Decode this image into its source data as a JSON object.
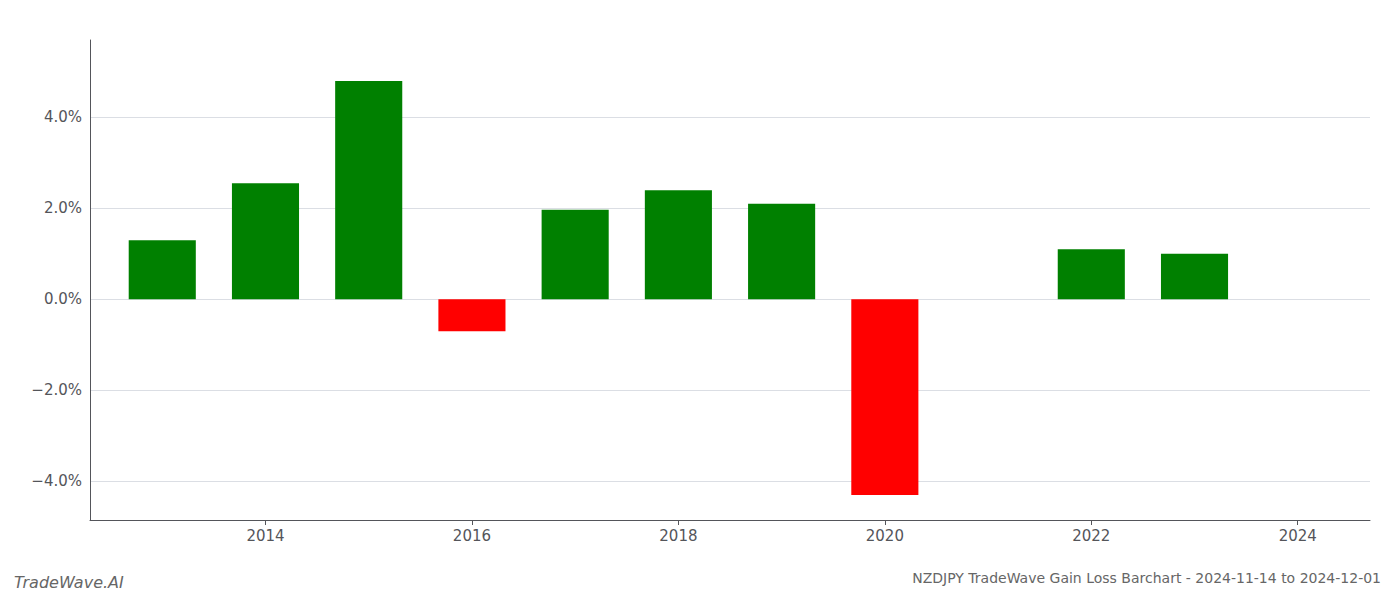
{
  "chart_data": {
    "type": "bar",
    "title": "NZDJPY TradeWave Gain Loss Barchart - 2024-11-14 to 2024-12-01",
    "annotations": [
      "TradeWave.AI"
    ],
    "x": [
      2013,
      2014,
      2015,
      2016,
      2017,
      2018,
      2019,
      2020,
      2021,
      2022,
      2023
    ],
    "values": [
      1.3,
      2.55,
      4.8,
      -0.7,
      1.97,
      2.4,
      2.1,
      -4.3,
      0.0,
      1.1,
      1.0
    ],
    "colors": [
      "#008000",
      "#008000",
      "#008000",
      "#ff0000",
      "#008000",
      "#008000",
      "#008000",
      "#ff0000",
      "#ff0000",
      "#008000",
      "#008000"
    ],
    "xlim": [
      2012.3,
      2024.7
    ],
    "xticks": [
      2014,
      2016,
      2018,
      2020,
      2022,
      2024
    ],
    "ylim": [
      -4.85,
      5.7
    ],
    "yticks": [
      {
        "value": -4.0,
        "label": "−4.0%"
      },
      {
        "value": -2.0,
        "label": "−2.0%"
      },
      {
        "value": 0.0,
        "label": "0.0%"
      },
      {
        "value": 2.0,
        "label": "2.0%"
      },
      {
        "value": 4.0,
        "label": "4.0%"
      }
    ],
    "grid": true
  }
}
